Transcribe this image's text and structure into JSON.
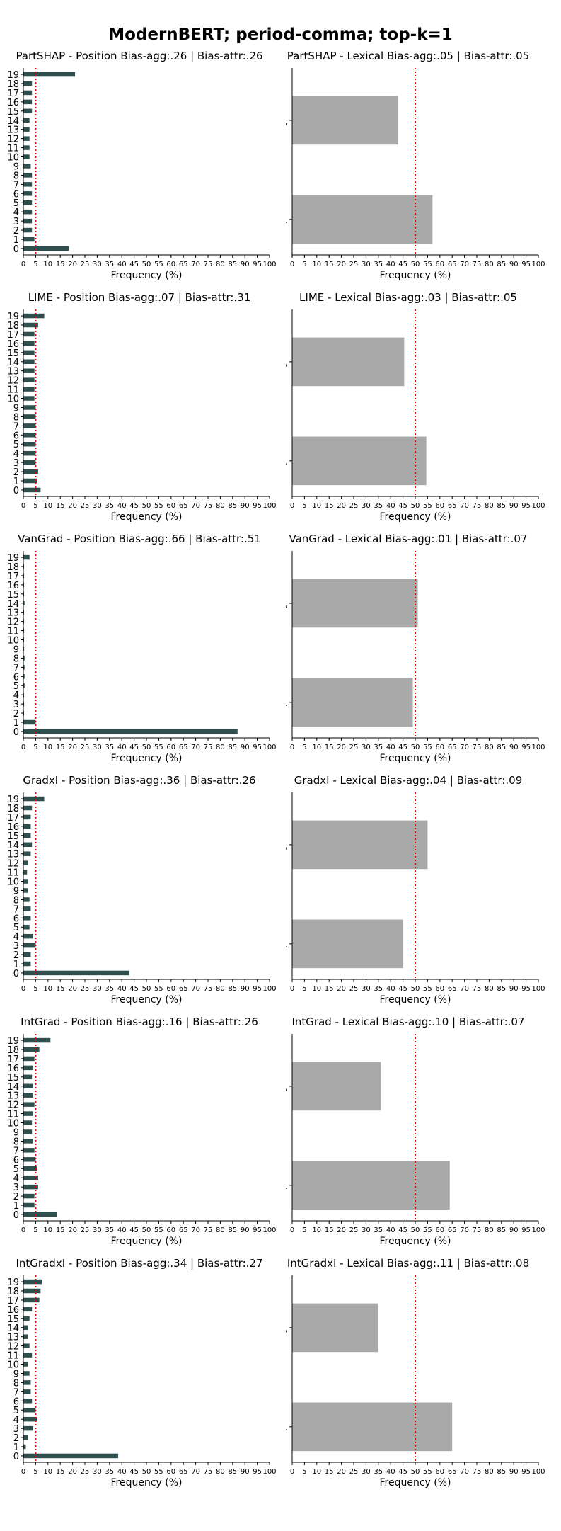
{
  "title": "ModernBERT; period-comma; top-k=1",
  "chart_data": [
    {
      "type": "bar",
      "orientation": "horizontal",
      "title": "PartSHAP - Position Bias-agg:.26 | Bias-attr:.26",
      "xlabel": "Frequency (%)",
      "xlim": [
        0,
        100
      ],
      "x_ticks": [
        0,
        5,
        10,
        15,
        20,
        25,
        30,
        35,
        40,
        45,
        50,
        55,
        60,
        65,
        70,
        75,
        80,
        85,
        90,
        95,
        100
      ],
      "reference_line": 5,
      "bar_color": "#2f4f4f",
      "categories": [
        "0",
        "1",
        "2",
        "3",
        "4",
        "5",
        "6",
        "7",
        "8",
        "9",
        "10",
        "11",
        "12",
        "13",
        "14",
        "15",
        "16",
        "17",
        "18",
        "19"
      ],
      "values": [
        18.5,
        4.5,
        3.5,
        3.5,
        3.5,
        3.5,
        3.5,
        3.5,
        3.5,
        3.0,
        2.5,
        2.5,
        2.5,
        2.5,
        2.5,
        3.5,
        3.5,
        3.5,
        3.5,
        21.0
      ]
    },
    {
      "type": "bar",
      "orientation": "horizontal",
      "title": "PartSHAP - Lexical Bias-agg:.05 | Bias-attr:.05",
      "xlabel": "Frequency (%)",
      "xlim": [
        0,
        100
      ],
      "x_ticks": [
        0,
        5,
        10,
        15,
        20,
        25,
        30,
        35,
        40,
        45,
        50,
        55,
        60,
        65,
        70,
        75,
        80,
        85,
        90,
        95,
        100
      ],
      "reference_line": 50,
      "bar_color": "#a9a9a9",
      "categories": [
        ".",
        ","
      ],
      "values": [
        57.0,
        43.0
      ]
    },
    {
      "type": "bar",
      "orientation": "horizontal",
      "title": "LIME - Position Bias-agg:.07 | Bias-attr:.31",
      "xlabel": "Frequency (%)",
      "xlim": [
        0,
        100
      ],
      "x_ticks": [
        0,
        5,
        10,
        15,
        20,
        25,
        30,
        35,
        40,
        45,
        50,
        55,
        60,
        65,
        70,
        75,
        80,
        85,
        90,
        95,
        100
      ],
      "reference_line": 5,
      "bar_color": "#2f4f4f",
      "categories": [
        "0",
        "1",
        "2",
        "3",
        "4",
        "5",
        "6",
        "7",
        "8",
        "9",
        "10",
        "11",
        "12",
        "13",
        "14",
        "15",
        "16",
        "17",
        "18",
        "19"
      ],
      "values": [
        7.0,
        5.5,
        6.0,
        5.0,
        5.0,
        5.0,
        5.0,
        5.0,
        5.0,
        5.0,
        4.5,
        4.5,
        4.5,
        4.5,
        4.5,
        4.5,
        4.5,
        4.5,
        6.0,
        8.5
      ]
    },
    {
      "type": "bar",
      "orientation": "horizontal",
      "title": "LIME - Lexical Bias-agg:.03 | Bias-attr:.05",
      "xlabel": "Frequency (%)",
      "xlim": [
        0,
        100
      ],
      "x_ticks": [
        0,
        5,
        10,
        15,
        20,
        25,
        30,
        35,
        40,
        45,
        50,
        55,
        60,
        65,
        70,
        75,
        80,
        85,
        90,
        95,
        100
      ],
      "reference_line": 50,
      "bar_color": "#a9a9a9",
      "categories": [
        ".",
        ","
      ],
      "values": [
        54.5,
        45.5
      ]
    },
    {
      "type": "bar",
      "orientation": "horizontal",
      "title": "VanGrad - Position Bias-agg:.66 | Bias-attr:.51",
      "xlabel": "Frequency (%)",
      "xlim": [
        0,
        100
      ],
      "x_ticks": [
        0,
        5,
        10,
        15,
        20,
        25,
        30,
        35,
        40,
        45,
        50,
        55,
        60,
        65,
        70,
        75,
        80,
        85,
        90,
        95,
        100
      ],
      "reference_line": 5,
      "bar_color": "#2f4f4f",
      "categories": [
        "0",
        "1",
        "2",
        "3",
        "4",
        "5",
        "6",
        "7",
        "8",
        "9",
        "10",
        "11",
        "12",
        "13",
        "14",
        "15",
        "16",
        "17",
        "18",
        "19"
      ],
      "values": [
        87.0,
        5.0,
        0.3,
        0.3,
        0.3,
        0.5,
        0.5,
        0.5,
        0.5,
        0.3,
        0.3,
        0.3,
        0.3,
        0.3,
        0.5,
        0.3,
        0.3,
        0.3,
        0.3,
        2.5
      ]
    },
    {
      "type": "bar",
      "orientation": "horizontal",
      "title": "VanGrad - Lexical Bias-agg:.01 | Bias-attr:.07",
      "xlabel": "Frequency (%)",
      "xlim": [
        0,
        100
      ],
      "x_ticks": [
        0,
        5,
        10,
        15,
        20,
        25,
        30,
        35,
        40,
        45,
        50,
        55,
        60,
        65,
        70,
        75,
        80,
        85,
        90,
        95,
        100
      ],
      "reference_line": 50,
      "bar_color": "#a9a9a9",
      "categories": [
        ".",
        ","
      ],
      "values": [
        49.0,
        51.0
      ]
    },
    {
      "type": "bar",
      "orientation": "horizontal",
      "title": "GradxI - Position Bias-agg:.36 | Bias-attr:.26",
      "xlabel": "Frequency (%)",
      "xlim": [
        0,
        100
      ],
      "x_ticks": [
        0,
        5,
        10,
        15,
        20,
        25,
        30,
        35,
        40,
        45,
        50,
        55,
        60,
        65,
        70,
        75,
        80,
        85,
        90,
        95,
        100
      ],
      "reference_line": 5,
      "bar_color": "#2f4f4f",
      "categories": [
        "0",
        "1",
        "2",
        "3",
        "4",
        "5",
        "6",
        "7",
        "8",
        "9",
        "10",
        "11",
        "12",
        "13",
        "14",
        "15",
        "16",
        "17",
        "18",
        "19"
      ],
      "values": [
        43.0,
        3.0,
        3.0,
        5.0,
        4.0,
        2.5,
        3.0,
        3.0,
        2.5,
        2.0,
        2.0,
        1.5,
        2.0,
        3.0,
        3.5,
        3.0,
        3.0,
        3.0,
        3.5,
        8.5
      ]
    },
    {
      "type": "bar",
      "orientation": "horizontal",
      "title": "GradxI - Lexical Bias-agg:.04 | Bias-attr:.09",
      "xlabel": "Frequency (%)",
      "xlim": [
        0,
        100
      ],
      "x_ticks": [
        0,
        5,
        10,
        15,
        20,
        25,
        30,
        35,
        40,
        45,
        50,
        55,
        60,
        65,
        70,
        75,
        80,
        85,
        90,
        95,
        100
      ],
      "reference_line": 50,
      "bar_color": "#a9a9a9",
      "categories": [
        ".",
        ","
      ],
      "values": [
        45.0,
        55.0
      ]
    },
    {
      "type": "bar",
      "orientation": "horizontal",
      "title": "IntGrad - Position Bias-agg:.16 | Bias-attr:.26",
      "xlabel": "Frequency (%)",
      "xlim": [
        0,
        100
      ],
      "x_ticks": [
        0,
        5,
        10,
        15,
        20,
        25,
        30,
        35,
        40,
        45,
        50,
        55,
        60,
        65,
        70,
        75,
        80,
        85,
        90,
        95,
        100
      ],
      "reference_line": 5,
      "bar_color": "#2f4f4f",
      "categories": [
        "0",
        "1",
        "2",
        "3",
        "4",
        "5",
        "6",
        "7",
        "8",
        "9",
        "10",
        "11",
        "12",
        "13",
        "14",
        "15",
        "16",
        "17",
        "18",
        "19"
      ],
      "values": [
        13.5,
        4.5,
        4.5,
        6.0,
        6.0,
        5.5,
        5.0,
        4.5,
        4.0,
        3.5,
        3.5,
        4.0,
        4.5,
        4.0,
        4.0,
        3.5,
        4.0,
        4.5,
        6.5,
        11.0
      ]
    },
    {
      "type": "bar",
      "orientation": "horizontal",
      "title": "IntGrad - Lexical Bias-agg:.10 | Bias-attr:.07",
      "xlabel": "Frequency (%)",
      "xlim": [
        0,
        100
      ],
      "x_ticks": [
        0,
        5,
        10,
        15,
        20,
        25,
        30,
        35,
        40,
        45,
        50,
        55,
        60,
        65,
        70,
        75,
        80,
        85,
        90,
        95,
        100
      ],
      "reference_line": 50,
      "bar_color": "#a9a9a9",
      "categories": [
        ".",
        ","
      ],
      "values": [
        64.0,
        36.0
      ]
    },
    {
      "type": "bar",
      "orientation": "horizontal",
      "title": "IntGradxI - Position Bias-agg:.34 | Bias-attr:.27",
      "xlabel": "Frequency (%)",
      "xlim": [
        0,
        100
      ],
      "x_ticks": [
        0,
        5,
        10,
        15,
        20,
        25,
        30,
        35,
        40,
        45,
        50,
        55,
        60,
        65,
        70,
        75,
        80,
        85,
        90,
        95,
        100
      ],
      "reference_line": 5,
      "bar_color": "#2f4f4f",
      "categories": [
        "0",
        "1",
        "2",
        "3",
        "4",
        "5",
        "6",
        "7",
        "8",
        "9",
        "10",
        "11",
        "12",
        "13",
        "14",
        "15",
        "16",
        "17",
        "18",
        "19"
      ],
      "values": [
        38.5,
        1.0,
        2.0,
        4.0,
        5.5,
        5.0,
        3.5,
        3.0,
        3.0,
        2.5,
        2.0,
        3.5,
        2.5,
        2.0,
        2.0,
        2.5,
        3.5,
        6.5,
        7.0,
        7.5
      ]
    },
    {
      "type": "bar",
      "orientation": "horizontal",
      "title": "IntGradxI - Lexical Bias-agg:.11 | Bias-attr:.08",
      "xlabel": "Frequency (%)",
      "xlim": [
        0,
        100
      ],
      "x_ticks": [
        0,
        5,
        10,
        15,
        20,
        25,
        30,
        35,
        40,
        45,
        50,
        55,
        60,
        65,
        70,
        75,
        80,
        85,
        90,
        95,
        100
      ],
      "reference_line": 50,
      "bar_color": "#a9a9a9",
      "categories": [
        ".",
        ","
      ],
      "values": [
        65.0,
        35.0
      ]
    }
  ]
}
